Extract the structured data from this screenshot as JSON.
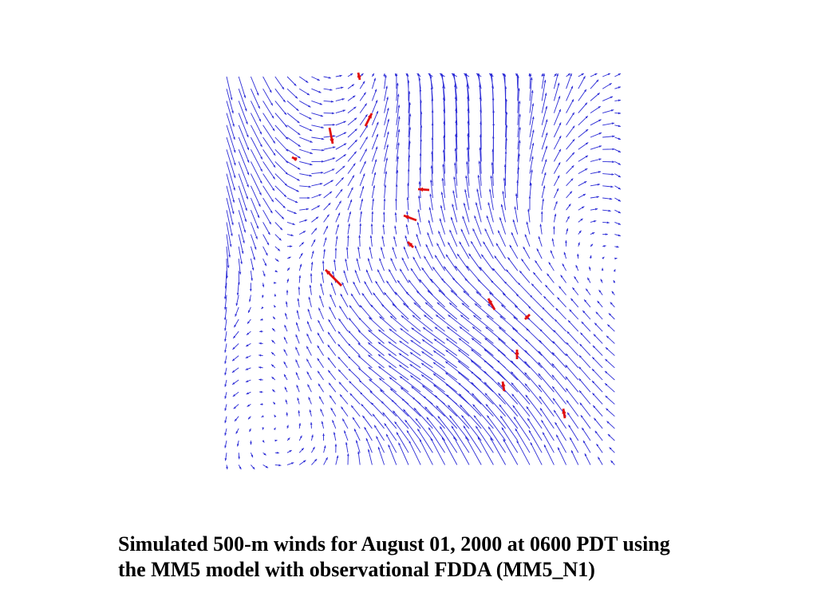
{
  "figure": {
    "caption_lines": [
      "Simulated 500-m winds for August 01, 2000 at 0600 PDT using",
      "the MM5 model with observational FDDA (MM5_N1)"
    ]
  },
  "colors": {
    "model_vector": "#2b2bd6",
    "observation_vector": "#e01010"
  }
}
